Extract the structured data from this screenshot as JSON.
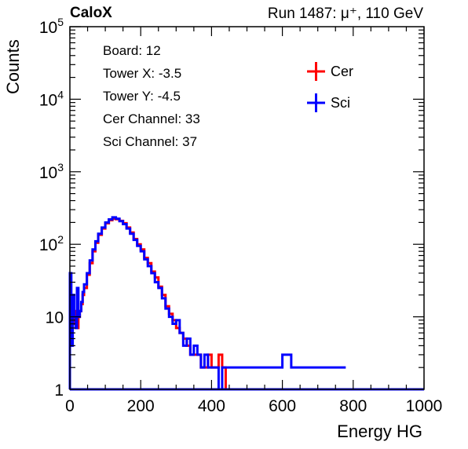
{
  "header": {
    "left": "CaloX",
    "right": "Run 1487:   μ⁺, 110 GeV"
  },
  "info": {
    "lines": [
      "Board: 12",
      "Tower X: -3.5",
      "Tower Y: -4.5",
      "Cer Channel: 33",
      "Sci Channel: 37"
    ]
  },
  "chart_data": {
    "type": "line",
    "xlabel": "Energy HG",
    "ylabel": "Counts",
    "xlim": [
      0,
      1000
    ],
    "ylim": [
      1,
      100000
    ],
    "yscale": "log",
    "x_ticks": [
      "0",
      "200",
      "400",
      "600",
      "800",
      "1000"
    ],
    "y_ticks": [
      "1",
      "10",
      "10^2",
      "10^3",
      "10^4",
      "10^5"
    ],
    "legend_position": "top-right",
    "series": [
      {
        "name": "Cer",
        "color": "#ff0000",
        "x": [
          0,
          4,
          8,
          12,
          16,
          20,
          24,
          28,
          32,
          36,
          40,
          48,
          56,
          64,
          72,
          80,
          90,
          100,
          110,
          120,
          130,
          140,
          150,
          160,
          170,
          180,
          190,
          200,
          210,
          220,
          230,
          240,
          250,
          260,
          270,
          280,
          290,
          300,
          310,
          320,
          330,
          340,
          350,
          360,
          370,
          380,
          390,
          400,
          410,
          420,
          430,
          440
        ],
        "y": [
          4,
          15,
          8,
          12,
          8,
          7,
          10,
          12,
          15,
          20,
          25,
          38,
          55,
          80,
          105,
          135,
          165,
          195,
          215,
          225,
          222,
          210,
          195,
          170,
          145,
          118,
          100,
          85,
          65,
          55,
          42,
          35,
          26,
          20,
          14,
          11,
          9,
          7,
          6,
          5,
          4,
          3,
          3,
          3,
          2,
          2,
          3,
          2,
          2,
          3,
          2,
          1
        ]
      },
      {
        "name": "Sci",
        "color": "#0000ff",
        "x": [
          0,
          4,
          8,
          12,
          16,
          20,
          24,
          28,
          32,
          36,
          40,
          48,
          56,
          64,
          72,
          80,
          90,
          100,
          110,
          120,
          130,
          140,
          150,
          160,
          170,
          180,
          190,
          200,
          210,
          220,
          230,
          240,
          250,
          260,
          270,
          280,
          290,
          300,
          310,
          320,
          330,
          340,
          350,
          360,
          370,
          380,
          390,
          400,
          410,
          420,
          430,
          440,
          460,
          480,
          500,
          520,
          600,
          625,
          715,
          765,
          775
        ],
        "y": [
          40,
          4,
          20,
          10,
          7,
          25,
          10,
          12,
          16,
          22,
          28,
          40,
          60,
          85,
          110,
          140,
          170,
          200,
          220,
          235,
          225,
          208,
          190,
          165,
          140,
          115,
          95,
          80,
          62,
          50,
          40,
          30,
          25,
          18,
          13,
          10,
          8,
          9,
          6,
          4,
          5,
          3,
          4,
          3,
          2,
          3,
          2,
          2,
          2,
          1,
          2,
          2,
          2,
          2,
          2,
          2,
          3,
          2,
          2,
          2,
          2
        ]
      }
    ]
  }
}
